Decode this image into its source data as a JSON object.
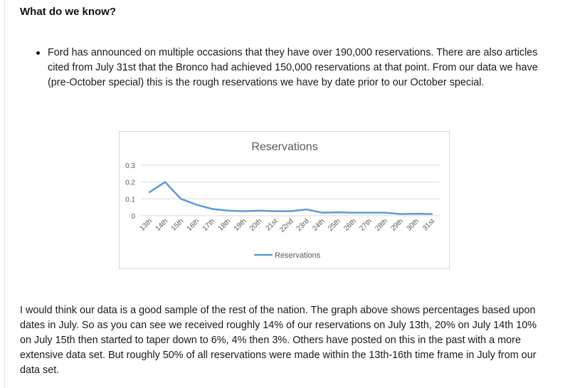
{
  "heading": "What do we know?",
  "bullets": [
    "Ford has announced on multiple occasions that they have over 190,000 reservations. There are also articles cited from July 31st that the Bronco had achieved 150,000 reservations at that point. From our data we have (pre-October special) this is the rough reservations we have by date prior to our October special."
  ],
  "chart_data": {
    "type": "line",
    "title": "Reservations",
    "categories": [
      "13th",
      "14th",
      "15th",
      "16th",
      "17th",
      "18th",
      "19th",
      "20th",
      "21st",
      "22nd",
      "23rd",
      "24th",
      "25th",
      "26th",
      "27th",
      "28th",
      "29th",
      "30th",
      "31st"
    ],
    "y_ticks": [
      "0.3",
      "0.2",
      "0.1",
      "0"
    ],
    "ylim": [
      0,
      0.3
    ],
    "grid": true,
    "legend": "bottom",
    "series": [
      {
        "name": "Reservations",
        "color": "#5b9bd5",
        "values": [
          0.14,
          0.2,
          0.1,
          0.065,
          0.04,
          0.03,
          0.027,
          0.03,
          0.027,
          0.027,
          0.037,
          0.018,
          0.02,
          0.018,
          0.018,
          0.018,
          0.01,
          0.012,
          0.01
        ]
      }
    ]
  },
  "paragraph": "I would think our data is a good sample of the rest of the nation. The graph above shows percentages based upon dates in July. So as you can see we received roughly 14% of our reservations on July 13th, 20% on July 14th 10% on July 15th then started to taper down to 6%, 4% then 3%. Others have posted on this in the past with a more extensive data set. But roughly 50% of all reservations were made within the 13th-16th time frame in July from our data set."
}
